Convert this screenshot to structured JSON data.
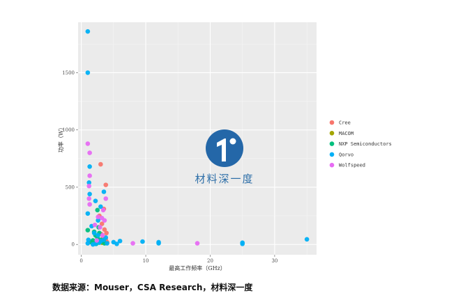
{
  "chart_data": {
    "type": "scatter",
    "xlabel": "最高工作频率（GHz）",
    "ylabel": "功率（W）",
    "xlim": [
      -0.5,
      36.5
    ],
    "ylim": [
      -90,
      1940
    ],
    "x_ticks": [
      0,
      10,
      20,
      30
    ],
    "y_ticks": [
      0,
      500,
      1000,
      1500
    ],
    "grid": true,
    "legend_position": "right",
    "series": [
      {
        "name": "Cree",
        "color": "#F8766D",
        "points": [
          [
            3.0,
            700
          ],
          [
            3.8,
            520
          ],
          [
            3.5,
            310
          ],
          [
            3.2,
            180
          ],
          [
            3.6,
            130
          ],
          [
            3.9,
            100
          ],
          [
            3.4,
            60
          ],
          [
            3.8,
            40
          ],
          [
            4.0,
            20
          ],
          [
            3.1,
            90
          ],
          [
            2.8,
            250
          ]
        ]
      },
      {
        "name": "MACOM",
        "color": "#A3A500",
        "points": [
          [
            2.6,
            20
          ],
          [
            3.2,
            15
          ],
          [
            3.5,
            30
          ],
          [
            2.2,
            10
          ]
        ]
      },
      {
        "name": "NXP Semiconductors",
        "color": "#00BF7D",
        "points": [
          [
            1.0,
            125
          ],
          [
            1.5,
            20
          ],
          [
            2.0,
            110
          ],
          [
            2.5,
            300
          ],
          [
            2.7,
            150
          ],
          [
            2.8,
            100
          ],
          [
            2.2,
            80
          ],
          [
            2.5,
            60
          ],
          [
            3.0,
            40
          ],
          [
            3.6,
            10
          ],
          [
            1.8,
            35
          ],
          [
            2.3,
            5
          ],
          [
            3.3,
            25
          ]
        ]
      },
      {
        "name": "Qorvo",
        "color": "#00B0F6",
        "points": [
          [
            1.0,
            1860
          ],
          [
            1.0,
            1500
          ],
          [
            1.3,
            680
          ],
          [
            1.2,
            540
          ],
          [
            1.3,
            440
          ],
          [
            2.2,
            380
          ],
          [
            3.5,
            460
          ],
          [
            1.0,
            270
          ],
          [
            2.6,
            210
          ],
          [
            1.6,
            160
          ],
          [
            2.0,
            100
          ],
          [
            2.6,
            80
          ],
          [
            1.1,
            40
          ],
          [
            3.5,
            40
          ],
          [
            5.0,
            20
          ],
          [
            6.0,
            30
          ],
          [
            9.5,
            25
          ],
          [
            12.0,
            20
          ],
          [
            12.0,
            10
          ],
          [
            25.0,
            15
          ],
          [
            25.0,
            5
          ],
          [
            35.0,
            45
          ],
          [
            1.8,
            0
          ],
          [
            2.2,
            5
          ],
          [
            4.0,
            10
          ],
          [
            3.0,
            330
          ],
          [
            3.0,
            30
          ],
          [
            1.0,
            10
          ],
          [
            5.5,
            5
          ],
          [
            2.8,
            15
          ],
          [
            3.8,
            60
          ]
        ]
      },
      {
        "name": "Wolfspeed",
        "color": "#E76BF3",
        "points": [
          [
            1.0,
            880
          ],
          [
            1.3,
            800
          ],
          [
            1.3,
            600
          ],
          [
            1.2,
            510
          ],
          [
            1.2,
            400
          ],
          [
            1.3,
            350
          ],
          [
            3.8,
            400
          ],
          [
            3.4,
            300
          ],
          [
            3.2,
            230
          ],
          [
            3.6,
            210
          ],
          [
            2.6,
            240
          ],
          [
            2.9,
            150
          ],
          [
            8.0,
            10
          ],
          [
            18.0,
            10
          ],
          [
            3.3,
            80
          ],
          [
            2.4,
            35
          ],
          [
            2.1,
            170
          ]
        ]
      }
    ]
  },
  "watermark": {
    "text": "材料深一度"
  },
  "caption": "数据来源：Mouser，CSA Research，材料深一度"
}
